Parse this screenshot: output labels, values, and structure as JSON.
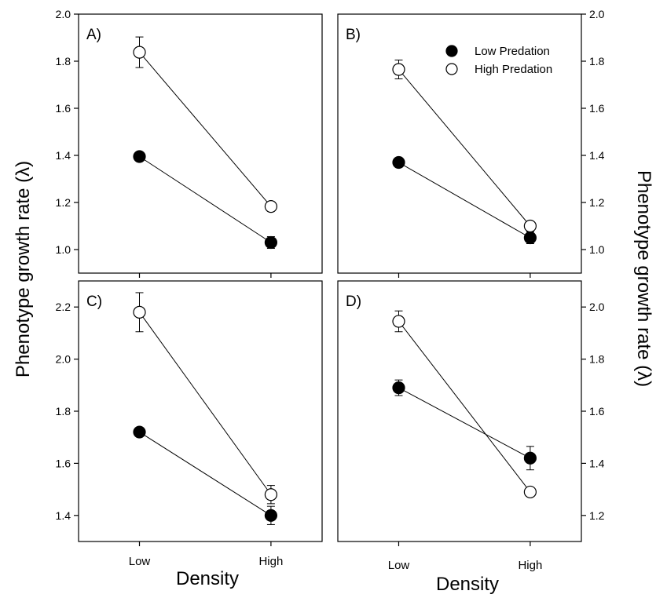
{
  "figure": {
    "ylabel_left": "Phenotype growth rate (λ)",
    "ylabel_right": "Phenotype growth rate (λ)",
    "xlabel_left": "Density",
    "xlabel_right": "Density"
  },
  "legend": {
    "placement": "top-right of panel B",
    "entries": [
      {
        "label": "Low Predation",
        "marker": "filled-circle",
        "color": "#000000"
      },
      {
        "label": "High Predation",
        "marker": "open-circle",
        "color": "#ffffff"
      }
    ]
  },
  "chart_data": [
    {
      "type": "line",
      "panel": "A)",
      "categories": [
        "Low",
        "High"
      ],
      "y_axis_side": "left",
      "ylim": [
        0.9,
        2.0
      ],
      "yticks": [
        "1.0",
        "1.2",
        "1.4",
        "1.6",
        "1.8",
        "2.0"
      ],
      "show_category_labels": false,
      "series": [
        {
          "name": "Low Predation",
          "values": [
            1.395,
            1.03
          ],
          "errors": [
            0.01,
            0.025
          ]
        },
        {
          "name": "High Predation",
          "values": [
            1.838,
            1.183
          ],
          "errors": [
            0.065,
            0.02
          ]
        }
      ]
    },
    {
      "type": "line",
      "panel": "B)",
      "categories": [
        "Low",
        "High"
      ],
      "y_axis_side": "right",
      "ylim": [
        0.9,
        2.0
      ],
      "yticks": [
        "1.0",
        "1.2",
        "1.4",
        "1.6",
        "1.8",
        "2.0"
      ],
      "show_category_labels": false,
      "series": [
        {
          "name": "Low Predation",
          "values": [
            1.37,
            1.05
          ],
          "errors": [
            0.02,
            0.025
          ]
        },
        {
          "name": "High Predation",
          "values": [
            1.765,
            1.1
          ],
          "errors": [
            0.04,
            0.01
          ]
        }
      ]
    },
    {
      "type": "line",
      "panel": "C)",
      "categories": [
        "Low",
        "High"
      ],
      "y_axis_side": "left",
      "ylim": [
        1.3,
        2.3
      ],
      "yticks": [
        "1.4",
        "1.6",
        "1.8",
        "2.0",
        "2.2"
      ],
      "show_category_labels": true,
      "series": [
        {
          "name": "Low Predation",
          "values": [
            1.72,
            1.4
          ],
          "errors": [
            0.01,
            0.035
          ]
        },
        {
          "name": "High Predation",
          "values": [
            2.18,
            1.48
          ],
          "errors": [
            0.075,
            0.035
          ]
        }
      ]
    },
    {
      "type": "line",
      "panel": "D)",
      "categories": [
        "Low",
        "High"
      ],
      "y_axis_side": "right",
      "ylim": [
        1.1,
        2.1
      ],
      "yticks": [
        "1.2",
        "1.4",
        "1.6",
        "1.8",
        "2.0"
      ],
      "show_category_labels": true,
      "series": [
        {
          "name": "Low Predation",
          "values": [
            1.69,
            1.42
          ],
          "errors": [
            0.03,
            0.045
          ]
        },
        {
          "name": "High Predation",
          "values": [
            1.945,
            1.29
          ],
          "errors": [
            0.04,
            0.01
          ]
        }
      ]
    }
  ]
}
